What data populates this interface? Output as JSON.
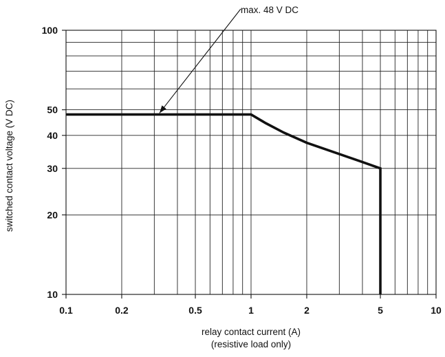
{
  "chart_data": {
    "type": "line",
    "title": "",
    "xlabel": "relay contact current (A)",
    "xlabel_note": "(resistive load only)",
    "ylabel": "switched contact voltage (V DC)",
    "xscale": "log",
    "yscale": "log",
    "xlim": [
      0.1,
      10
    ],
    "ylim": [
      10,
      100
    ],
    "grid": true,
    "legend": "none",
    "x_ticks": [
      {
        "value": 0.1,
        "label": "0.1"
      },
      {
        "value": 0.2,
        "label": "0.2"
      },
      {
        "value": 0.5,
        "label": "0.5"
      },
      {
        "value": 1,
        "label": "1"
      },
      {
        "value": 2,
        "label": "2"
      },
      {
        "value": 5,
        "label": "5"
      },
      {
        "value": 10,
        "label": "10"
      }
    ],
    "y_ticks": [
      {
        "value": 10,
        "label": "10"
      },
      {
        "value": 20,
        "label": "20"
      },
      {
        "value": 30,
        "label": "30"
      },
      {
        "value": 40,
        "label": "40"
      },
      {
        "value": 50,
        "label": "50"
      },
      {
        "value": 100,
        "label": "100"
      }
    ],
    "x_grid": [
      0.1,
      0.2,
      0.3,
      0.4,
      0.5,
      0.6,
      0.7,
      0.8,
      0.9,
      1,
      2,
      3,
      4,
      5,
      6,
      7,
      8,
      9,
      10
    ],
    "y_grid": [
      10,
      20,
      30,
      40,
      50,
      60,
      70,
      80,
      90,
      100
    ],
    "series": [
      {
        "color": "#111111",
        "points": [
          {
            "x": 0.1,
            "y": 48
          },
          {
            "x": 1,
            "y": 48
          },
          {
            "x": 1.2,
            "y": 44.5
          },
          {
            "x": 1.5,
            "y": 41
          },
          {
            "x": 2,
            "y": 37.5
          },
          {
            "x": 3,
            "y": 34
          },
          {
            "x": 4,
            "y": 31.7
          },
          {
            "x": 5,
            "y": 30
          },
          {
            "x": 5,
            "y": 10
          }
        ]
      }
    ],
    "annotations": [
      {
        "text": "max. 48 V DC",
        "x": 0.32,
        "y": 48
      }
    ]
  }
}
